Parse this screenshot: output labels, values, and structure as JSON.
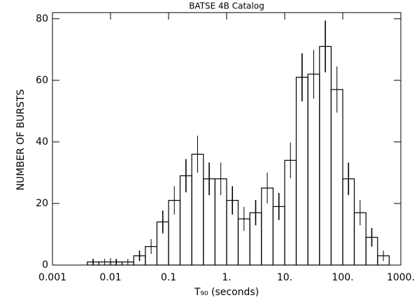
{
  "chart_data": {
    "type": "histogram",
    "title": "BATSE 4B Catalog",
    "xlabel": "T₉₀ (seconds)",
    "ylabel": "NUMBER OF BURSTS",
    "xscale": "log",
    "color": "#000000",
    "bins": [
      0.00398,
      0.00631,
      0.01,
      0.0158,
      0.0251,
      0.0398,
      0.0631,
      0.1,
      0.158,
      0.251,
      0.398,
      0.631,
      1,
      1.58,
      2.51,
      3.98,
      6.31,
      10,
      15.8,
      25.1,
      39.8,
      63.1,
      100,
      158,
      251,
      398,
      631
    ],
    "counts": [
      1,
      1,
      1,
      1,
      3,
      6,
      14,
      21,
      29,
      36,
      28,
      28,
      21,
      15,
      17,
      25,
      19,
      34,
      61,
      62,
      71,
      57,
      28,
      17,
      9,
      3
    ],
    "errors": [
      1,
      1,
      1,
      1,
      1.7,
      2.4,
      3.7,
      4.6,
      5.4,
      6,
      5.3,
      5.3,
      4.6,
      3.9,
      4.1,
      5,
      4.4,
      5.8,
      7.8,
      7.9,
      8.4,
      7.5,
      5.3,
      4.1,
      3,
      1.7
    ],
    "xlim": [
      0.001,
      1000
    ],
    "ylim": [
      0,
      82
    ],
    "xticks": [
      0.001,
      0.01,
      0.1,
      {
        "value": 1,
        "label": "1."
      },
      {
        "value": 10,
        "label": "10."
      },
      {
        "value": 100,
        "label": "100."
      },
      {
        "value": 1000,
        "label": "1000."
      }
    ],
    "yticks": [
      0,
      20,
      40,
      60,
      80
    ]
  }
}
